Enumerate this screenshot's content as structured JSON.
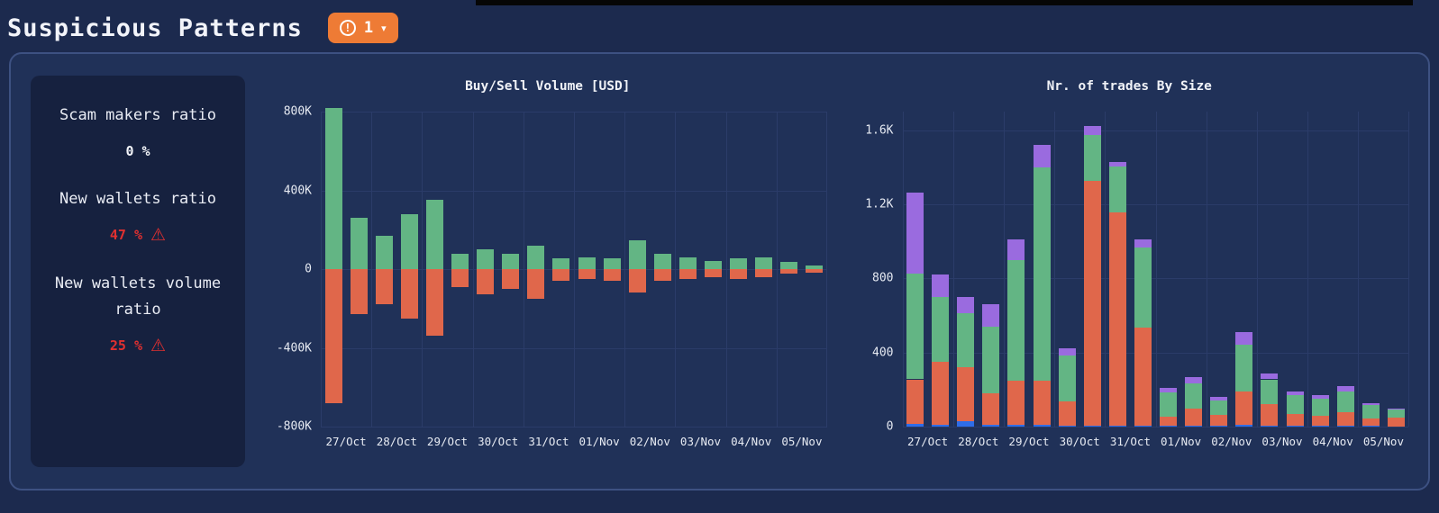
{
  "header": {
    "title": "Suspicious Patterns",
    "badge": {
      "icon": "!",
      "count": "1",
      "caret": "▾"
    }
  },
  "stats": {
    "warning_icon": "⚠",
    "items": [
      {
        "label": "Scam makers ratio",
        "value": "0 %",
        "warning": false
      },
      {
        "label": "New wallets ratio",
        "value": "47 %",
        "warning": true
      },
      {
        "label": "New wallets volume ratio",
        "value": "25 %",
        "warning": true
      }
    ]
  },
  "colors": {
    "buy_green": "#63b584",
    "sell_orange": "#e0674b",
    "purple": "#9a6bdf",
    "blue": "#2e6de8",
    "badge_orange": "#ee7b35",
    "warning_red": "#e03030",
    "grid": "#2b3c69"
  },
  "chart_data": [
    {
      "type": "bar",
      "title": "Buy/Sell Volume [USD]",
      "categories": [
        "27/Oct",
        "28/Oct",
        "29/Oct",
        "30/Oct",
        "31/Oct",
        "01/Nov",
        "02/Nov",
        "03/Nov",
        "04/Nov",
        "05/Nov"
      ],
      "bars_per_category": 2,
      "ylim": [
        -800000,
        800000
      ],
      "grid": true,
      "legend": false,
      "yticks": [
        {
          "value": 800000,
          "label": "800K"
        },
        {
          "value": 400000,
          "label": "400K"
        },
        {
          "value": 0,
          "label": "0"
        },
        {
          "value": -400000,
          "label": "-400K"
        },
        {
          "value": -800000,
          "label": "-800K"
        }
      ],
      "series": [
        {
          "name": "Buy",
          "color_key": "buy_green",
          "values": [
            820000,
            260000,
            170000,
            280000,
            350000,
            80000,
            100000,
            80000,
            120000,
            55000,
            60000,
            55000,
            145000,
            80000,
            60000,
            40000,
            55000,
            60000,
            35000,
            20000
          ]
        },
        {
          "name": "Sell",
          "color_key": "sell_orange",
          "values": [
            -680000,
            -230000,
            -180000,
            -250000,
            -340000,
            -90000,
            -130000,
            -100000,
            -150000,
            -60000,
            -50000,
            -60000,
            -120000,
            -60000,
            -50000,
            -40000,
            -50000,
            -40000,
            -25000,
            -20000
          ]
        }
      ]
    },
    {
      "type": "stacked-bar",
      "title": "Nr. of trades By Size",
      "categories": [
        "27/Oct",
        "28/Oct",
        "29/Oct",
        "30/Oct",
        "31/Oct",
        "01/Nov",
        "02/Nov",
        "03/Nov",
        "04/Nov",
        "05/Nov"
      ],
      "bars_per_category": 2,
      "ylim": [
        0,
        1700
      ],
      "grid": true,
      "legend": false,
      "yticks": [
        {
          "value": 1600,
          "label": "1.6K"
        },
        {
          "value": 1200,
          "label": "1.2K"
        },
        {
          "value": 800,
          "label": "800"
        },
        {
          "value": 400,
          "label": "400"
        },
        {
          "value": 0,
          "label": "0"
        }
      ],
      "series": [
        {
          "name": "blue",
          "color_key": "blue",
          "values": [
            15,
            10,
            30,
            10,
            10,
            10,
            5,
            5,
            5,
            5,
            5,
            5,
            5,
            10,
            5,
            5,
            5,
            5,
            5,
            0
          ]
        },
        {
          "name": "orange",
          "color_key": "sell_orange",
          "values": [
            240,
            340,
            290,
            170,
            240,
            240,
            130,
            1320,
            1150,
            530,
            50,
            90,
            60,
            180,
            115,
            65,
            55,
            75,
            40,
            50
          ]
        },
        {
          "name": "green",
          "color_key": "buy_green",
          "values": [
            570,
            350,
            290,
            360,
            650,
            1150,
            250,
            250,
            250,
            430,
            130,
            140,
            75,
            250,
            135,
            100,
            90,
            110,
            70,
            40
          ]
        },
        {
          "name": "purple",
          "color_key": "purple",
          "values": [
            440,
            120,
            90,
            120,
            110,
            120,
            40,
            45,
            25,
            45,
            25,
            30,
            20,
            70,
            30,
            20,
            20,
            30,
            10,
            5
          ]
        }
      ]
    }
  ]
}
